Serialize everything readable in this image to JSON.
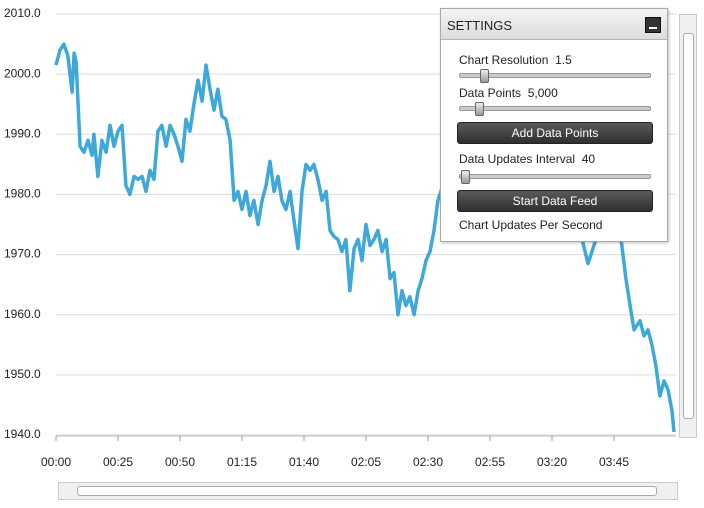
{
  "chart_data": {
    "type": "line",
    "x": [
      0,
      1.6,
      3.2,
      4.8,
      6.5,
      7.3,
      8.1,
      9.7,
      11.3,
      12.9,
      14.5,
      15.3,
      16.9,
      18.5,
      20.2,
      21.8,
      23.4,
      25,
      26.6,
      28.2,
      29.8,
      31.5,
      33.1,
      34.7,
      36.3,
      37.9,
      39.5,
      41.1,
      42.7,
      44.4,
      46,
      47.6,
      49.2,
      50.8,
      52.4,
      54,
      55.6,
      57.3,
      58.9,
      60.5,
      62.1,
      63.7,
      65.3,
      66.9,
      68.5,
      70.2,
      71.8,
      73.4,
      75,
      76.6,
      78.2,
      79.8,
      81.5,
      83.1,
      84.7,
      86.3,
      87.9,
      89.5,
      91.1,
      92.7,
      94.4,
      96,
      97.6,
      99.2,
      100.8,
      102.4,
      104,
      105.6,
      107.3,
      108.9,
      110.5,
      112.1,
      113.7,
      115.3,
      116.9,
      118.5,
      120.2,
      121.8,
      123.4,
      125,
      126.6,
      128.2,
      129.8,
      131.5,
      133.1,
      134.7,
      136.3,
      137.9,
      139.5,
      141.1,
      142.7,
      144.4,
      146,
      147.6,
      149.2,
      150.8,
      152.4,
      154,
      158.9,
      166.9,
      175,
      183.1,
      191.1,
      199.2,
      202.4,
      211.3,
      214.5,
      217.7,
      221,
      224.2,
      227.4,
      229.8,
      231.5,
      233.1,
      235.5,
      237.1,
      238.7,
      240.3,
      241.9,
      243.5,
      245.2,
      246.8,
      248.4,
      249.2
    ],
    "values": [
      2001.5,
      2004,
      2005,
      2003,
      1997,
      2003.5,
      2002,
      1988,
      1987,
      1989,
      1986.5,
      1990,
      1983,
      1989,
      1987,
      1991.5,
      1988,
      1990.5,
      1991.5,
      1981.5,
      1980,
      1983,
      1982.5,
      1983,
      1980.5,
      1984,
      1982.5,
      1990.5,
      1991.5,
      1988,
      1991.5,
      1990,
      1988,
      1985.5,
      1992.5,
      1990.5,
      1995,
      1999,
      1995.5,
      2001.5,
      1997.5,
      1994,
      1997.5,
      1993,
      1992.5,
      1989,
      1979,
      1980.5,
      1977.5,
      1980.5,
      1976.5,
      1979,
      1975,
      1979,
      1981.5,
      1985.5,
      1980.5,
      1983,
      1979,
      1977.5,
      1980.5,
      1975.5,
      1971,
      1980.5,
      1985,
      1984,
      1985,
      1982.5,
      1979,
      1980.5,
      1974,
      1973,
      1972.5,
      1970.5,
      1972.5,
      1964,
      1971,
      1972.5,
      1969,
      1975,
      1971.5,
      1972.5,
      1974,
      1970.5,
      1972.5,
      1966,
      1967,
      1960,
      1964,
      1961.5,
      1963,
      1960,
      1964,
      1966,
      1969,
      1970.5,
      1974,
      1979,
      1985,
      1990,
      1988,
      1992,
      1985,
      1978,
      1972.5,
      1974,
      1968.5,
      1972.5,
      1975,
      1976.5,
      1974,
      1966,
      1961.5,
      1957.5,
      1959,
      1956.5,
      1957.5,
      1955,
      1951.5,
      1946.5,
      1949,
      1947.5,
      1944,
      1940.5
    ],
    "color": "#2a9fd6",
    "xlim": [
      0,
      250
    ],
    "xticks": [
      {
        "value": 0,
        "label": "00:00"
      },
      {
        "value": 25,
        "label": "00:25"
      },
      {
        "value": 50,
        "label": "00:50"
      },
      {
        "value": 75,
        "label": "01:15"
      },
      {
        "value": 100,
        "label": "01:40"
      },
      {
        "value": 125,
        "label": "02:05"
      },
      {
        "value": 150,
        "label": "02:30"
      },
      {
        "value": 175,
        "label": "02:55"
      },
      {
        "value": 200,
        "label": "03:20"
      },
      {
        "value": 225,
        "label": "03:45"
      }
    ],
    "ylim": [
      1940,
      2010
    ],
    "yticks": [
      {
        "value": 1940,
        "label": "1940.0"
      },
      {
        "value": 1950,
        "label": "1950.0"
      },
      {
        "value": 1960,
        "label": "1960.0"
      },
      {
        "value": 1970,
        "label": "1970.0"
      },
      {
        "value": 1980,
        "label": "1980.0"
      },
      {
        "value": 1990,
        "label": "1990.0"
      },
      {
        "value": 2000,
        "label": "2000.0"
      },
      {
        "value": 2010,
        "label": "2010.0"
      }
    ],
    "grid": true
  },
  "settings": {
    "title": "SETTINGS",
    "resolution_label": "Chart Resolution",
    "resolution_value": "1.5",
    "points_label": "Data Points",
    "points_value": "5,000",
    "add_button": "Add Data Points",
    "interval_label": "Data Updates Interval",
    "interval_value": "40",
    "feed_button": "Start Data Feed",
    "ups_label": "Chart Updates Per Second"
  }
}
